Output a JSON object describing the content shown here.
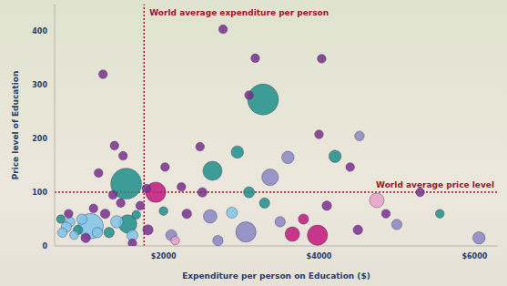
{
  "chart_data": {
    "type": "scatter",
    "x_label": "Expenditure per person on Education ($)",
    "y_label": "Price level of Education",
    "x": [
      3280,
      1520,
      1063,
      1900,
      2630,
      3980,
      3060,
      1540,
      3371,
      4743,
      6057,
      5554,
      3657,
      1165,
      1223,
      2766,
      3100,
      3180,
      4000,
      4034,
      2950,
      3600,
      4206,
      4400,
      4520,
      2470,
      2230,
      2020,
      1780,
      2600,
      2880,
      3300,
      3500,
      2300,
      2100,
      2700,
      3800,
      4100,
      4500,
      5000,
      4860,
      5300,
      3100,
      2500,
      1700,
      1650,
      1600,
      1400,
      1300,
      1250,
      1150,
      950,
      900,
      850,
      800,
      780,
      750,
      700,
      680,
      1000,
      1100,
      1350,
      1450,
      1600,
      1800,
      2000,
      1370,
      1480,
      2150
    ],
    "values": [
      273,
      116,
      37,
      100,
      140,
      20,
      26,
      41,
      128,
      85,
      15,
      60,
      22,
      136,
      320,
      404,
      281,
      350,
      208,
      349,
      175,
      165,
      167,
      147,
      205,
      185,
      110,
      147,
      107,
      55,
      62,
      80,
      45,
      60,
      20,
      10,
      50,
      75,
      30,
      40,
      60,
      100,
      100,
      100,
      75,
      58,
      20,
      45,
      25,
      60,
      25,
      50,
      30,
      20,
      45,
      60,
      35,
      25,
      50,
      15,
      70,
      95,
      80,
      5,
      30,
      65,
      187,
      168,
      10
    ],
    "sizes": [
      60,
      60,
      40,
      25,
      22,
      25,
      25,
      20,
      16,
      12,
      8,
      3,
      12,
      3,
      3,
      3,
      3,
      3,
      3,
      3,
      8,
      8,
      8,
      3,
      4,
      3,
      3,
      3,
      3,
      10,
      6,
      5,
      5,
      4,
      6,
      5,
      5,
      4,
      4,
      5,
      3,
      3,
      6,
      4,
      3,
      3,
      6,
      8,
      5,
      4,
      5,
      5,
      4,
      3,
      4,
      3,
      5,
      4,
      3,
      4,
      3,
      3,
      3,
      3,
      5,
      3,
      3,
      3,
      3
    ],
    "colors": [
      "#1f8f8a",
      "#1f8f8a",
      "#7fc4e8",
      "#c0187a",
      "#1f8f8a",
      "#c0187a",
      "#8a86c4",
      "#1f8f8a",
      "#8a86c4",
      "#e7a0c8",
      "#8a86c4",
      "#1f8f8a",
      "#c0187a",
      "#7a2e8e",
      "#7a2e8e",
      "#7a2e8e",
      "#7a2e8e",
      "#7a2e8e",
      "#7a2e8e",
      "#7a2e8e",
      "#1f8f8a",
      "#8a86c4",
      "#1f8f8a",
      "#7a2e8e",
      "#8a86c4",
      "#7a2e8e",
      "#7a2e8e",
      "#7a2e8e",
      "#7a2e8e",
      "#8a86c4",
      "#7fc4e8",
      "#1f8f8a",
      "#8a86c4",
      "#7a2e8e",
      "#8a86c4",
      "#8a86c4",
      "#c0187a",
      "#7a2e8e",
      "#7a2e8e",
      "#8a86c4",
      "#7a2e8e",
      "#7a2e8e",
      "#1f8f8a",
      "#7a2e8e",
      "#7a2e8e",
      "#1f8f8a",
      "#7fc4e8",
      "#7fc4e8",
      "#1f8f8a",
      "#7a2e8e",
      "#7fc4e8",
      "#7fc4e8",
      "#1f8f8a",
      "#7fc4e8",
      "#7fc4e8",
      "#7a2e8e",
      "#7fc4e8",
      "#7fc4e8",
      "#1f8f8a",
      "#7a2e8e",
      "#7a2e8e",
      "#7a2e8e",
      "#7a2e8e",
      "#7a2e8e",
      "#7a2e8e",
      "#1f8f8a",
      "#7a2e8e",
      "#7a2e8e",
      "#e7a0c8"
    ],
    "xlim": [
      600,
      6300
    ],
    "ylim": [
      0,
      450
    ],
    "xticks": [
      {
        "value": 2000,
        "label": "$2000"
      },
      {
        "value": 4000,
        "label": "$4000"
      },
      {
        "value": 6000,
        "label": "$6000"
      }
    ],
    "yticks": [
      0,
      100,
      200,
      300,
      400
    ],
    "grid": false,
    "reference_lines": [
      {
        "axis": "x",
        "value": 1750,
        "label": "World average expenditure per person",
        "color": "#a3152a"
      },
      {
        "axis": "y",
        "value": 100,
        "label": "World average price level",
        "color": "#a3152a"
      }
    ]
  }
}
